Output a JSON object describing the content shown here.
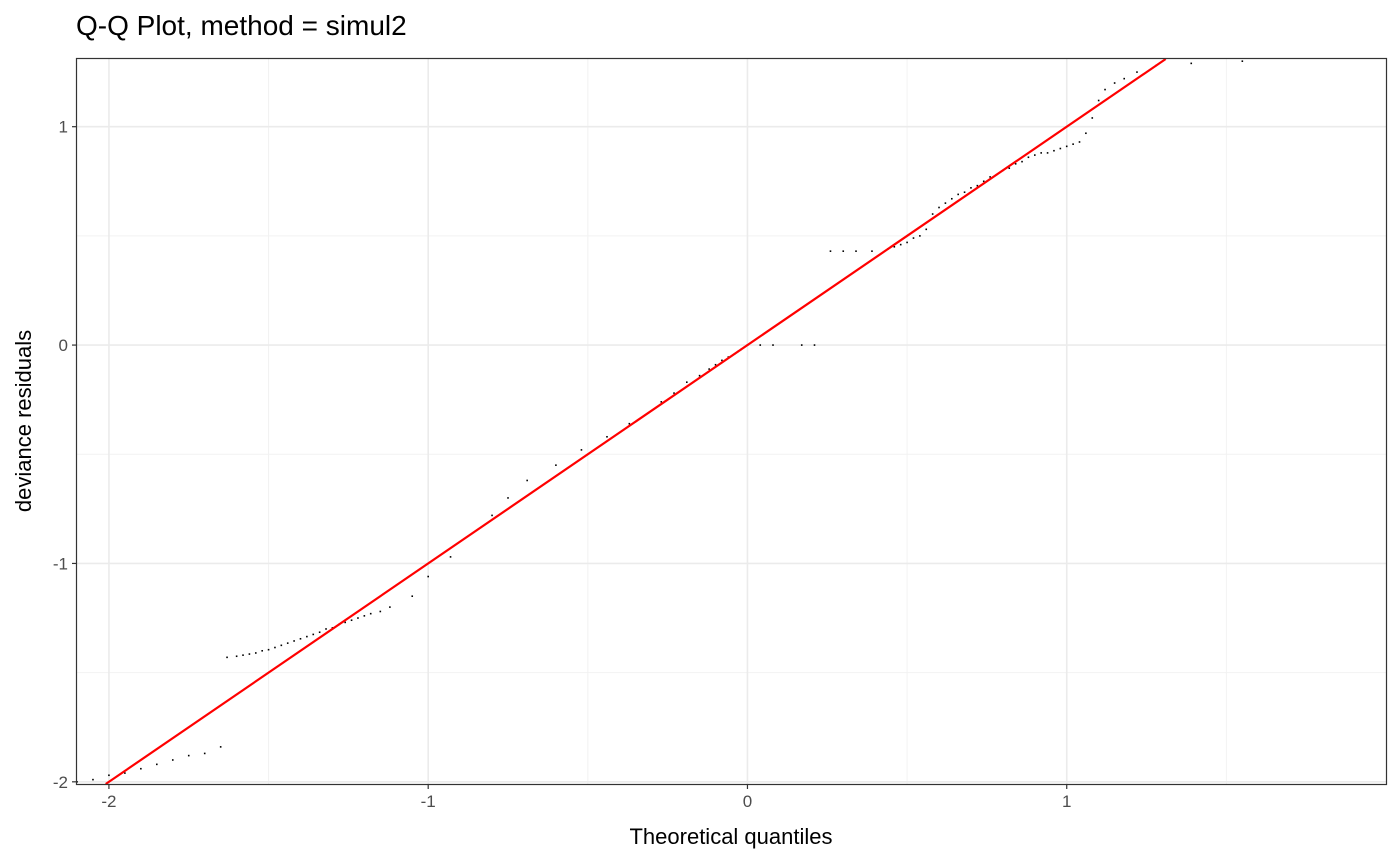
{
  "chart_data": {
    "type": "scatter",
    "title": "Q-Q Plot, method = simul2",
    "xlabel": "Theoretical quantiles",
    "ylabel": "deviance residuals",
    "xlim": [
      -2.1,
      2.0
    ],
    "ylim": [
      -2.01,
      1.31
    ],
    "x_ticks": [
      -2,
      -1,
      0,
      1
    ],
    "y_ticks": [
      -2,
      -1,
      0,
      1
    ],
    "x_tick_labels": [
      "-2",
      "-1",
      "0",
      "1"
    ],
    "y_tick_labels": [
      "-2",
      "-1",
      "0",
      "1"
    ],
    "grid": true,
    "reference_line": {
      "slope": 1,
      "intercept": 0,
      "color": "#ff0000"
    },
    "point_color": "#000000",
    "points": [
      [
        -2.1,
        -2.0
      ],
      [
        -2.05,
        -1.99
      ],
      [
        -2.0,
        -1.97
      ],
      [
        -1.95,
        -1.96
      ],
      [
        -1.9,
        -1.94
      ],
      [
        -1.85,
        -1.92
      ],
      [
        -1.8,
        -1.9
      ],
      [
        -1.75,
        -1.88
      ],
      [
        -1.7,
        -1.87
      ],
      [
        -1.65,
        -1.84
      ],
      [
        -1.63,
        -1.43
      ],
      [
        -1.6,
        -1.425
      ],
      [
        -1.58,
        -1.42
      ],
      [
        -1.56,
        -1.415
      ],
      [
        -1.54,
        -1.41
      ],
      [
        -1.52,
        -1.4
      ],
      [
        -1.5,
        -1.395
      ],
      [
        -1.48,
        -1.385
      ],
      [
        -1.46,
        -1.375
      ],
      [
        -1.44,
        -1.365
      ],
      [
        -1.42,
        -1.355
      ],
      [
        -1.4,
        -1.345
      ],
      [
        -1.38,
        -1.335
      ],
      [
        -1.36,
        -1.325
      ],
      [
        -1.34,
        -1.315
      ],
      [
        -1.32,
        -1.3
      ],
      [
        -1.3,
        -1.295
      ],
      [
        -1.28,
        -1.28
      ],
      [
        -1.26,
        -1.27
      ],
      [
        -1.24,
        -1.26
      ],
      [
        -1.22,
        -1.25
      ],
      [
        -1.2,
        -1.24
      ],
      [
        -1.18,
        -1.23
      ],
      [
        -1.15,
        -1.22
      ],
      [
        -1.12,
        -1.2
      ],
      [
        -1.05,
        -1.15
      ],
      [
        -1.0,
        -1.06
      ],
      [
        -0.93,
        -0.97
      ],
      [
        -0.8,
        -0.78
      ],
      [
        -0.75,
        -0.7
      ],
      [
        -0.69,
        -0.62
      ],
      [
        -0.6,
        -0.55
      ],
      [
        -0.52,
        -0.48
      ],
      [
        -0.44,
        -0.42
      ],
      [
        -0.37,
        -0.36
      ],
      [
        -0.31,
        -0.31
      ],
      [
        -0.27,
        -0.26
      ],
      [
        -0.23,
        -0.22
      ],
      [
        -0.19,
        -0.17
      ],
      [
        -0.15,
        -0.14
      ],
      [
        -0.12,
        -0.11
      ],
      [
        -0.1,
        -0.09
      ],
      [
        -0.08,
        -0.07
      ],
      [
        -0.06,
        -0.055
      ],
      [
        -0.04,
        -0.04
      ],
      [
        -0.03,
        -0.03
      ],
      [
        -0.02,
        -0.02
      ],
      [
        -0.01,
        -0.01
      ],
      [
        0.0,
        0.0
      ],
      [
        0.04,
        0.0
      ],
      [
        0.08,
        0.0
      ],
      [
        0.17,
        0.0
      ],
      [
        0.21,
        0.0
      ],
      [
        0.26,
        0.43
      ],
      [
        0.3,
        0.43
      ],
      [
        0.34,
        0.43
      ],
      [
        0.39,
        0.43
      ],
      [
        0.44,
        0.44
      ],
      [
        0.46,
        0.45
      ],
      [
        0.48,
        0.46
      ],
      [
        0.5,
        0.47
      ],
      [
        0.52,
        0.49
      ],
      [
        0.54,
        0.5
      ],
      [
        0.56,
        0.53
      ],
      [
        0.58,
        0.6
      ],
      [
        0.6,
        0.63
      ],
      [
        0.62,
        0.65
      ],
      [
        0.64,
        0.67
      ],
      [
        0.66,
        0.69
      ],
      [
        0.68,
        0.7
      ],
      [
        0.7,
        0.72
      ],
      [
        0.72,
        0.73
      ],
      [
        0.74,
        0.75
      ],
      [
        0.76,
        0.77
      ],
      [
        0.78,
        0.78
      ],
      [
        0.8,
        0.8
      ],
      [
        0.82,
        0.81
      ],
      [
        0.84,
        0.83
      ],
      [
        0.86,
        0.84
      ],
      [
        0.88,
        0.86
      ],
      [
        0.9,
        0.87
      ],
      [
        0.92,
        0.88
      ],
      [
        0.94,
        0.88
      ],
      [
        0.96,
        0.89
      ],
      [
        0.98,
        0.9
      ],
      [
        1.0,
        0.91
      ],
      [
        1.02,
        0.92
      ],
      [
        1.04,
        0.93
      ],
      [
        1.06,
        0.97
      ],
      [
        1.08,
        1.04
      ],
      [
        1.1,
        1.12
      ],
      [
        1.12,
        1.17
      ],
      [
        1.15,
        1.2
      ],
      [
        1.18,
        1.22
      ],
      [
        1.22,
        1.25
      ],
      [
        1.28,
        1.28
      ],
      [
        1.39,
        1.29
      ],
      [
        1.55,
        1.3
      ]
    ]
  }
}
